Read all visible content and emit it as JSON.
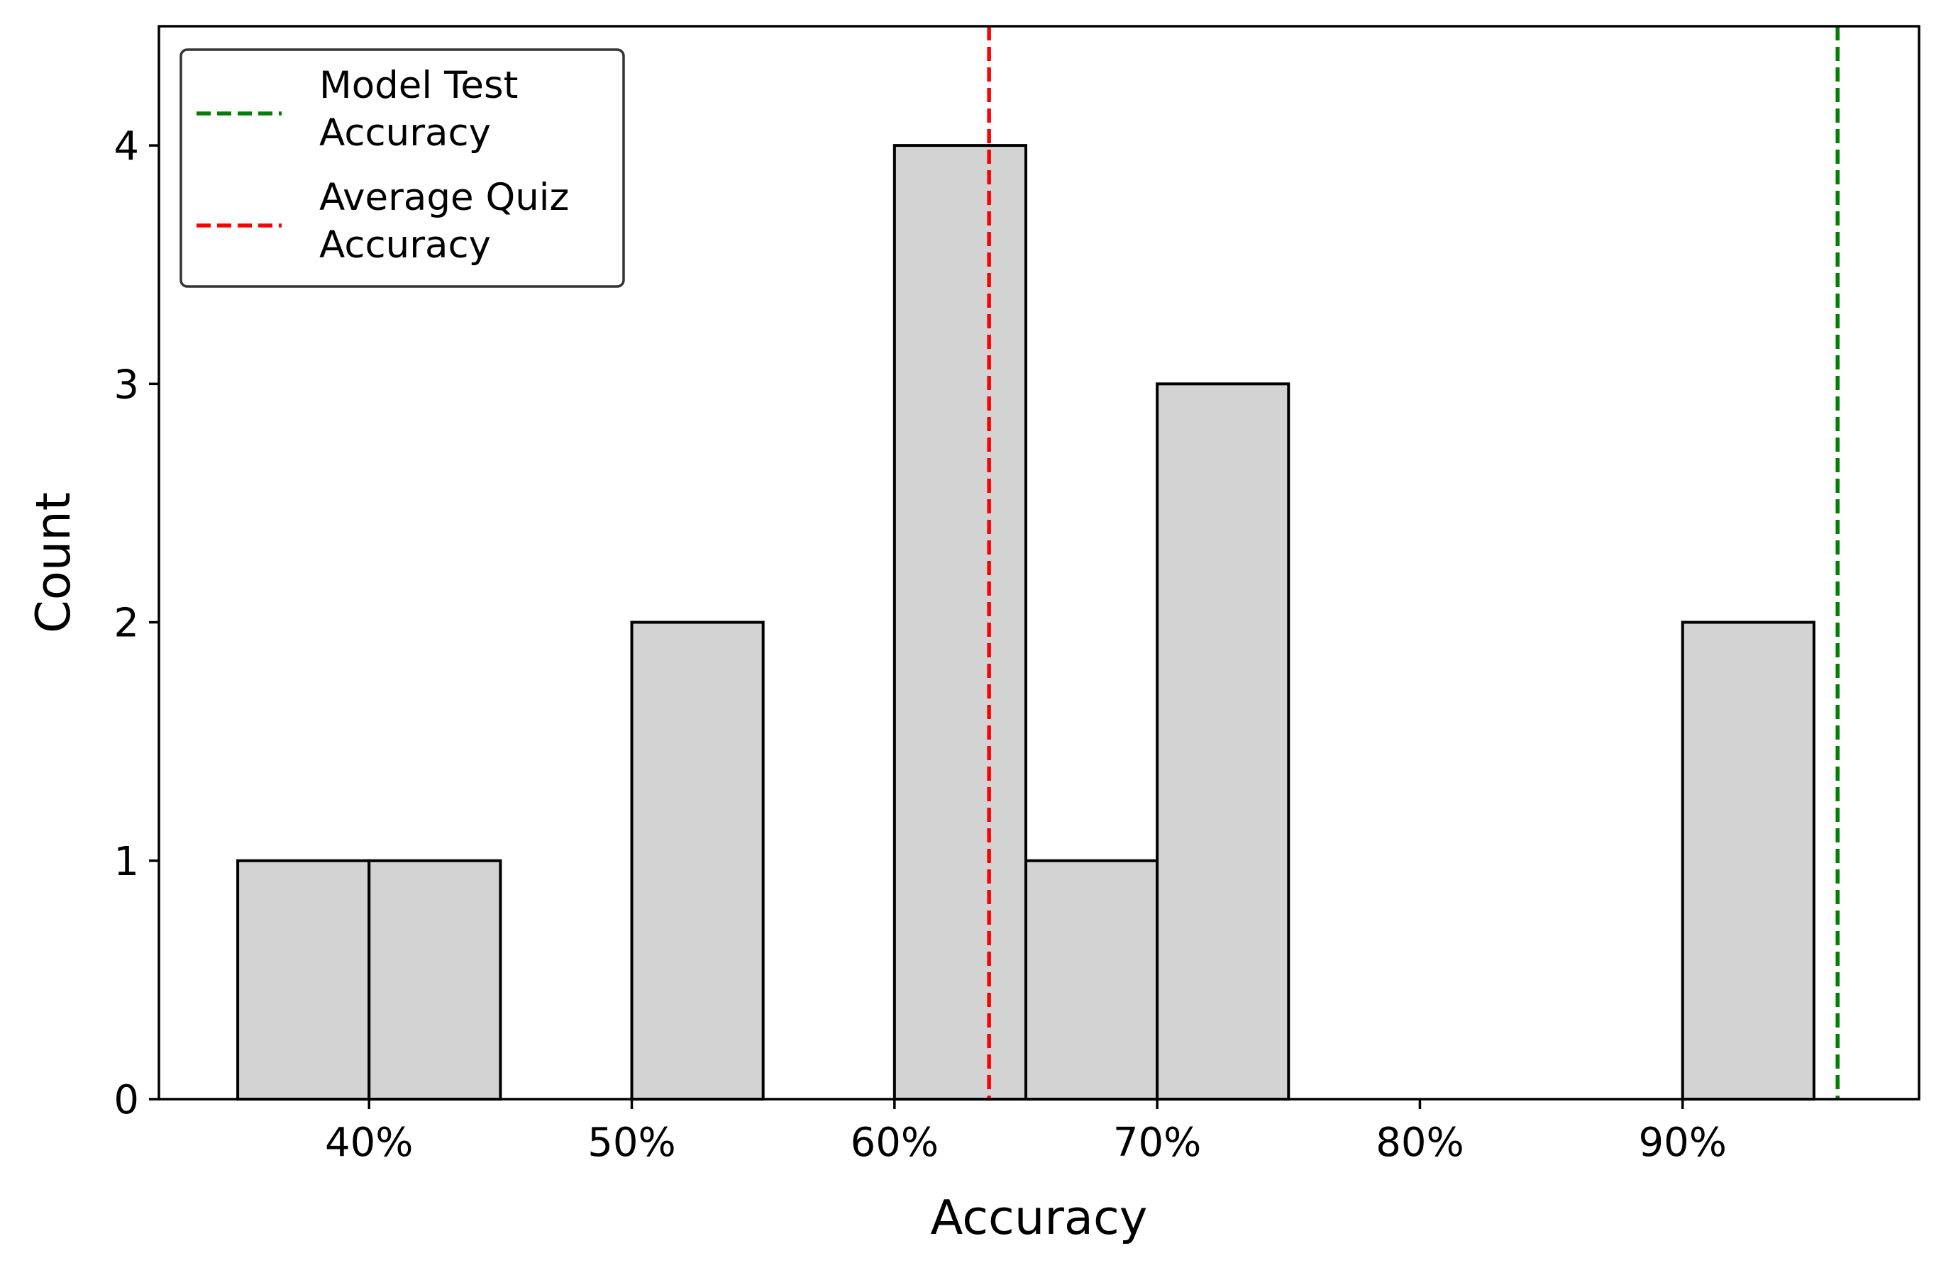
{
  "chart_data": {
    "type": "bar",
    "xlabel": "Accuracy",
    "ylabel": "Count",
    "xlim": [
      0.32,
      0.99
    ],
    "ylim": [
      0,
      4.5
    ],
    "x_ticks": [
      {
        "value": 0.4,
        "label": "40%"
      },
      {
        "value": 0.5,
        "label": "50%"
      },
      {
        "value": 0.6,
        "label": "60%"
      },
      {
        "value": 0.7,
        "label": "70%"
      },
      {
        "value": 0.8,
        "label": "80%"
      },
      {
        "value": 0.9,
        "label": "90%"
      }
    ],
    "y_ticks": [
      {
        "value": 0,
        "label": "0"
      },
      {
        "value": 1,
        "label": "1"
      },
      {
        "value": 2,
        "label": "2"
      },
      {
        "value": 3,
        "label": "3"
      },
      {
        "value": 4,
        "label": "4"
      }
    ],
    "bins": [
      {
        "start": 0.35,
        "end": 0.4,
        "count": 1
      },
      {
        "start": 0.4,
        "end": 0.45,
        "count": 1
      },
      {
        "start": 0.45,
        "end": 0.5,
        "count": 0
      },
      {
        "start": 0.5,
        "end": 0.55,
        "count": 2
      },
      {
        "start": 0.55,
        "end": 0.6,
        "count": 0
      },
      {
        "start": 0.6,
        "end": 0.65,
        "count": 4
      },
      {
        "start": 0.65,
        "end": 0.7,
        "count": 1
      },
      {
        "start": 0.7,
        "end": 0.75,
        "count": 3
      },
      {
        "start": 0.75,
        "end": 0.8,
        "count": 0
      },
      {
        "start": 0.8,
        "end": 0.85,
        "count": 0
      },
      {
        "start": 0.85,
        "end": 0.9,
        "count": 0
      },
      {
        "start": 0.9,
        "end": 0.95,
        "count": 2
      }
    ],
    "reference_lines": [
      {
        "name": "Model Test Accuracy",
        "label_lines": [
          "Model Test",
          "Accuracy"
        ],
        "x": 0.959,
        "color": "#008000",
        "style": "dashed"
      },
      {
        "name": "Average Quiz Accuracy",
        "label_lines": [
          "Average Quiz",
          "Accuracy"
        ],
        "x": 0.636,
        "color": "#ff0000",
        "style": "dashed"
      }
    ],
    "bar_fill": "#d3d3d3",
    "bar_edge": "#000000",
    "grid": false,
    "legend_position": "top-left"
  }
}
